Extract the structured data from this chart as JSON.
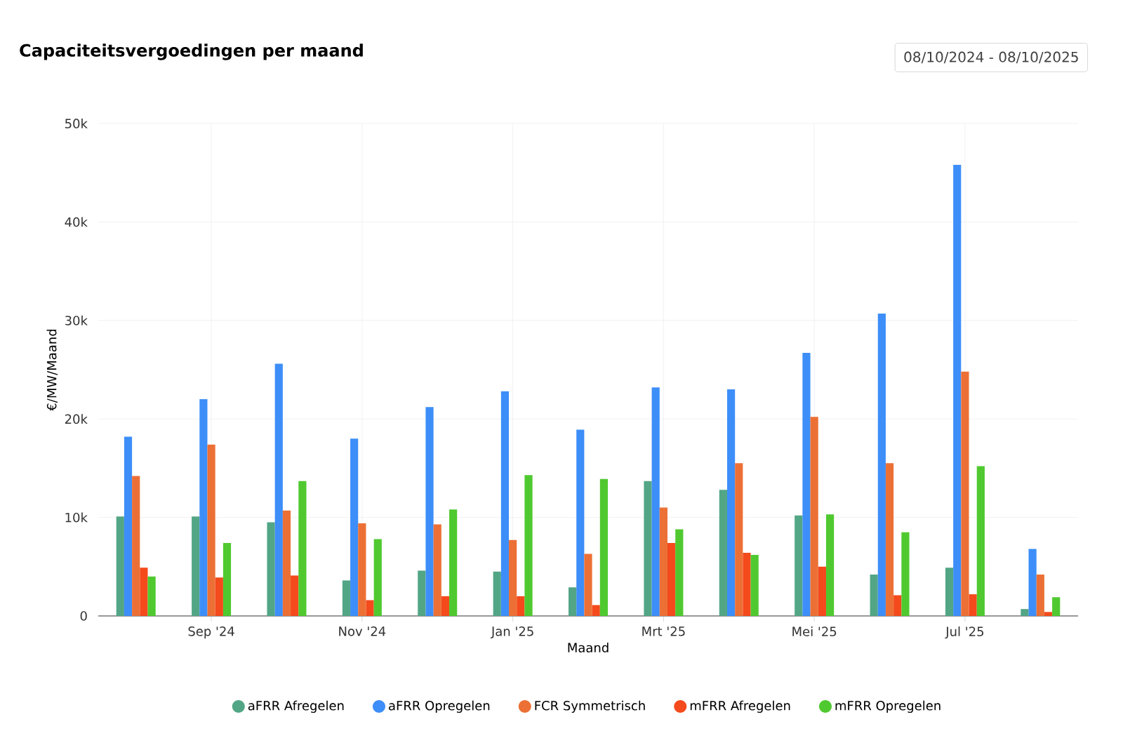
{
  "chart_data": {
    "type": "bar",
    "title": "Capaciteitsvergoedingen per maand",
    "subtitle": "08/10/2024 - 08/10/2025",
    "xlabel": "Maand",
    "ylabel": "€/MW/Maand",
    "categories": [
      null,
      "Sep '24",
      null,
      "Nov '24",
      null,
      "Jan '25",
      null,
      "Mrt '25",
      null,
      "Mei '25",
      null,
      "Jul '25",
      null
    ],
    "series": [
      {
        "name": "aFRR Afregelen",
        "color": "#52a685",
        "values": [
          10100,
          10100,
          9500,
          3600,
          4600,
          4500,
          2900,
          13700,
          12800,
          10200,
          4200,
          4900,
          700
        ]
      },
      {
        "name": "aFRR Opregelen",
        "color": "#3d8ef8",
        "values": [
          18200,
          22000,
          25600,
          18000,
          21200,
          22800,
          18900,
          23200,
          23000,
          26700,
          30700,
          45800,
          6800
        ]
      },
      {
        "name": "FCR Symmetrisch",
        "color": "#ec7035",
        "values": [
          14200,
          17400,
          10700,
          9400,
          9300,
          7700,
          6300,
          11000,
          15500,
          20200,
          15500,
          24800,
          4200
        ]
      },
      {
        "name": "mFRR Afregelen",
        "color": "#f44a1c",
        "values": [
          4900,
          3900,
          4100,
          1600,
          2000,
          2000,
          1100,
          7400,
          6400,
          5000,
          2100,
          2200,
          400
        ]
      },
      {
        "name": "mFRR Opregelen",
        "color": "#4fc92f",
        "values": [
          4000,
          7400,
          13700,
          7800,
          10800,
          14300,
          13900,
          8800,
          6200,
          10300,
          8500,
          15200,
          1900
        ]
      }
    ],
    "ylim": [
      0,
      50000
    ],
    "yticks": [
      0,
      {
        "value": 10000,
        "label": "10k"
      },
      {
        "value": 20000,
        "label": "20k"
      },
      {
        "value": 30000,
        "label": "30k"
      },
      {
        "value": 40000,
        "label": "40k"
      },
      {
        "value": 50000,
        "label": "50k"
      }
    ],
    "grid": true,
    "legend": "bottom"
  }
}
